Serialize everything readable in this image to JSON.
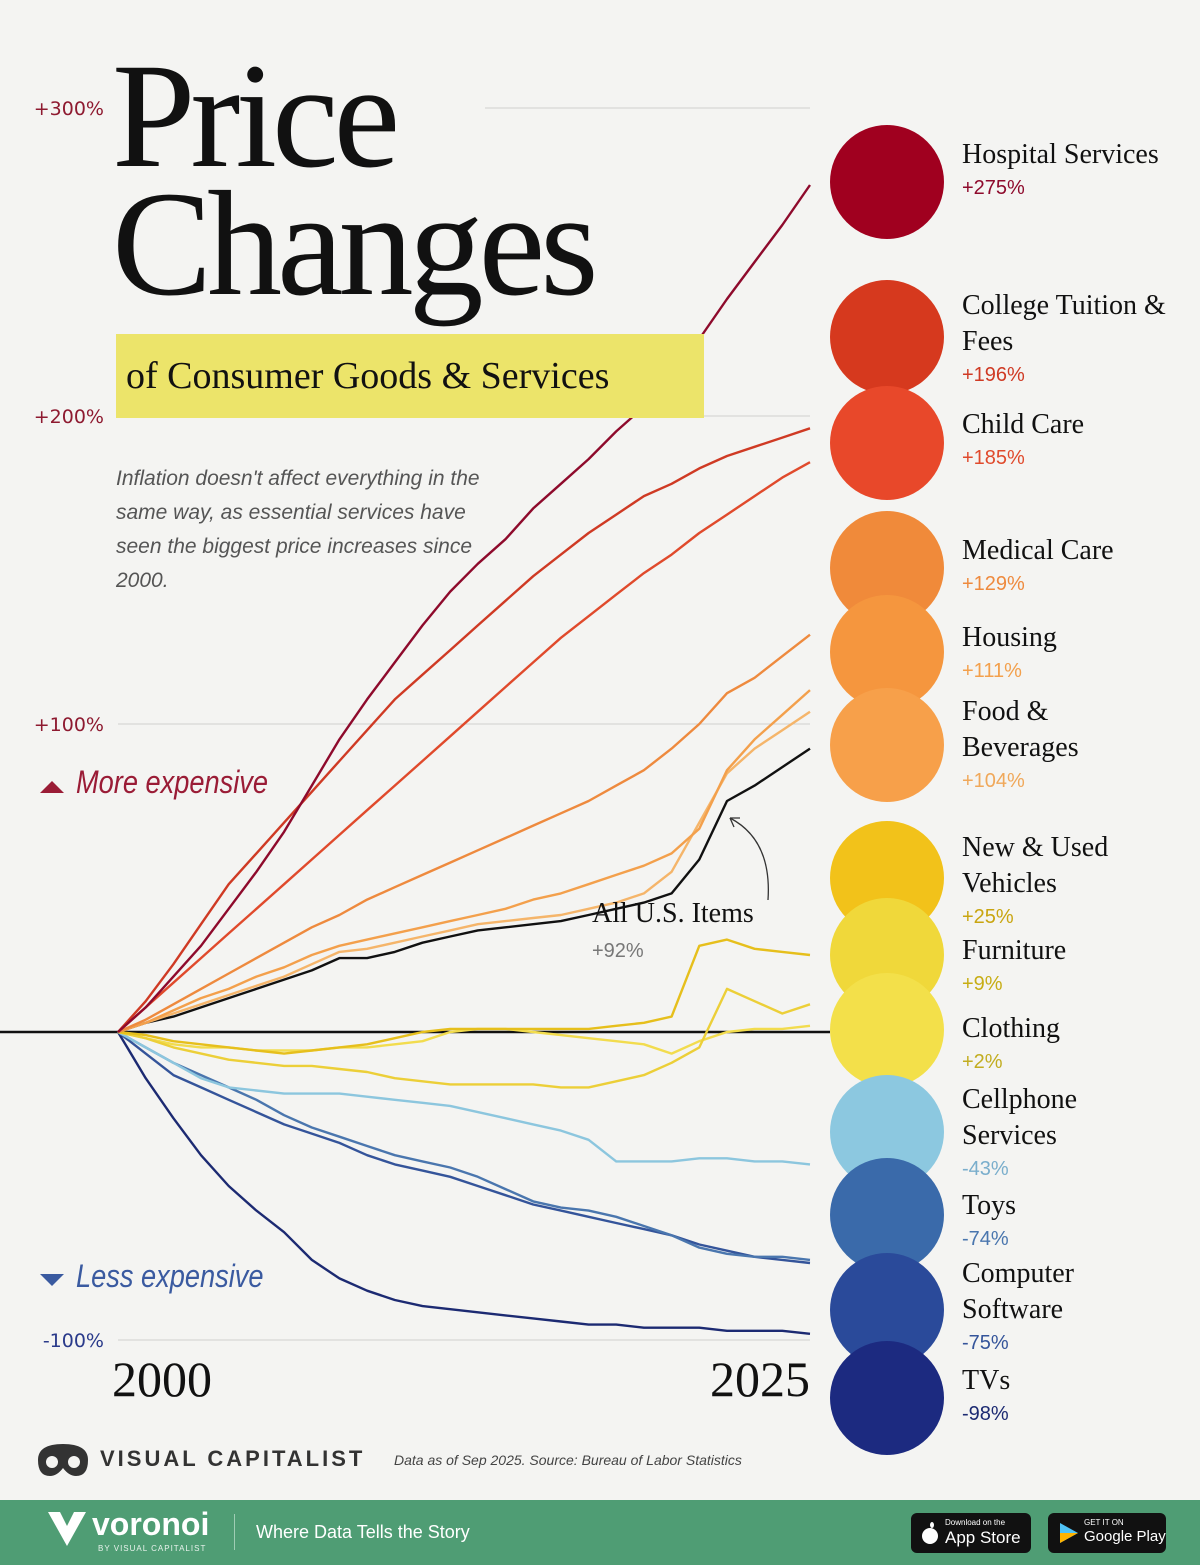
{
  "title": "Price Changes",
  "subtitle": "of Consumer Goods & Services",
  "description": "Inflation doesn't affect everything in the same way, as essential services have seen the biggest price increases since 2000.",
  "chart_data": {
    "type": "line",
    "annotations": [
      "More expensive",
      "Less expensive"
    ],
    "x": [
      2000,
      2001,
      2002,
      2003,
      2004,
      2005,
      2006,
      2007,
      2008,
      2009,
      2010,
      2011,
      2012,
      2013,
      2014,
      2015,
      2016,
      2017,
      2018,
      2019,
      2020,
      2021,
      2022,
      2023,
      2024,
      2025
    ],
    "xlim": [
      2000,
      2025
    ],
    "xticks": [
      2000,
      2025
    ],
    "ylim": [
      -100,
      300
    ],
    "yticks": [
      {
        "value": -100,
        "label": "-100%"
      },
      {
        "value": 100,
        "label": "+100%"
      },
      {
        "value": 200,
        "label": "+200%"
      },
      {
        "value": 300,
        "label": "+300%"
      }
    ],
    "grid": true,
    "series": [
      {
        "name": "Hospital Services",
        "color": "#8e0a2c",
        "values": [
          0,
          8,
          18,
          28,
          40,
          52,
          65,
          80,
          95,
          108,
          120,
          132,
          143,
          152,
          160,
          170,
          178,
          186,
          195,
          203,
          212,
          225,
          238,
          250,
          262,
          275
        ],
        "value_labels": [
          null,
          null,
          null,
          null,
          null,
          null,
          null,
          null,
          null,
          null,
          null,
          null,
          null,
          null,
          null,
          null,
          null,
          null,
          null,
          null,
          null,
          null,
          null,
          null,
          null,
          "+275%"
        ]
      },
      {
        "name": "College Tuition & Fees",
        "color": "#cf3a24",
        "values": [
          0,
          10,
          22,
          35,
          48,
          58,
          68,
          78,
          88,
          98,
          108,
          116,
          124,
          132,
          140,
          148,
          155,
          162,
          168,
          174,
          178,
          183,
          187,
          190,
          193,
          196
        ],
        "value_labels": [
          null,
          null,
          null,
          null,
          null,
          null,
          null,
          null,
          null,
          null,
          null,
          null,
          null,
          null,
          null,
          null,
          null,
          null,
          null,
          null,
          null,
          null,
          null,
          null,
          null,
          "+196%"
        ]
      },
      {
        "name": "Child Care",
        "color": "#e04a2c",
        "values": [
          0,
          8,
          16,
          24,
          32,
          40,
          48,
          56,
          64,
          72,
          80,
          88,
          96,
          104,
          112,
          120,
          128,
          135,
          142,
          149,
          155,
          162,
          168,
          174,
          180,
          185
        ],
        "value_labels": [
          null,
          null,
          null,
          null,
          null,
          null,
          null,
          null,
          null,
          null,
          null,
          null,
          null,
          null,
          null,
          null,
          null,
          null,
          null,
          null,
          null,
          null,
          null,
          null,
          null,
          "+185%"
        ]
      },
      {
        "name": "Medical Care",
        "color": "#ee8a3e",
        "values": [
          0,
          4,
          9,
          14,
          19,
          24,
          29,
          34,
          38,
          43,
          47,
          51,
          55,
          59,
          63,
          67,
          71,
          75,
          80,
          85,
          92,
          100,
          110,
          115,
          122,
          129
        ],
        "value_labels": [
          null,
          null,
          null,
          null,
          null,
          null,
          null,
          null,
          null,
          null,
          null,
          null,
          null,
          null,
          null,
          null,
          null,
          null,
          null,
          null,
          null,
          null,
          null,
          null,
          null,
          "+129%"
        ]
      },
      {
        "name": "Housing",
        "color": "#f3a04c",
        "values": [
          0,
          3,
          7,
          11,
          14,
          18,
          21,
          25,
          28,
          30,
          32,
          34,
          36,
          38,
          40,
          43,
          45,
          48,
          51,
          54,
          58,
          66,
          85,
          95,
          103,
          111
        ],
        "value_labels": [
          null,
          null,
          null,
          null,
          null,
          null,
          null,
          null,
          null,
          null,
          null,
          null,
          null,
          null,
          null,
          null,
          null,
          null,
          null,
          null,
          null,
          null,
          null,
          null,
          null,
          "+111%"
        ]
      },
      {
        "name": "Food & Beverages",
        "color": "#f5b56a",
        "values": [
          0,
          3,
          6,
          9,
          12,
          15,
          18,
          22,
          26,
          27,
          29,
          31,
          33,
          35,
          36,
          37,
          38,
          40,
          42,
          45,
          52,
          68,
          84,
          92,
          98,
          104
        ],
        "value_labels": [
          null,
          null,
          null,
          null,
          null,
          null,
          null,
          null,
          null,
          null,
          null,
          null,
          null,
          null,
          null,
          null,
          null,
          null,
          null,
          null,
          null,
          null,
          null,
          null,
          null,
          "+104%"
        ]
      },
      {
        "name": "All U.S. Items",
        "color": "#111111",
        "values": [
          0,
          3,
          5,
          8,
          11,
          14,
          17,
          20,
          24,
          24,
          26,
          29,
          31,
          33,
          34,
          35,
          36,
          38,
          40,
          42,
          45,
          56,
          75,
          80,
          86,
          92
        ],
        "value_labels": [
          null,
          null,
          null,
          null,
          null,
          null,
          null,
          null,
          null,
          null,
          null,
          null,
          null,
          null,
          null,
          null,
          null,
          null,
          null,
          null,
          null,
          null,
          null,
          null,
          null,
          "+92%"
        ]
      },
      {
        "name": "New & Used Vehicles",
        "color": "#e6bf1c",
        "values": [
          0,
          -1,
          -3,
          -4,
          -5,
          -6,
          -7,
          -6,
          -5,
          -4,
          -2,
          0,
          1,
          1,
          1,
          1,
          1,
          1,
          2,
          3,
          5,
          28,
          30,
          27,
          26,
          25
        ],
        "value_labels": [
          null,
          null,
          null,
          null,
          null,
          null,
          null,
          null,
          null,
          null,
          null,
          null,
          null,
          null,
          null,
          null,
          null,
          null,
          null,
          null,
          null,
          null,
          null,
          null,
          null,
          "+25%"
        ]
      },
      {
        "name": "Furniture",
        "color": "#eccf38",
        "values": [
          0,
          -2,
          -5,
          -7,
          -9,
          -10,
          -11,
          -11,
          -12,
          -13,
          -15,
          -16,
          -17,
          -17,
          -17,
          -17,
          -18,
          -18,
          -16,
          -14,
          -10,
          -5,
          14,
          10,
          6,
          9
        ],
        "value_labels": [
          null,
          null,
          null,
          null,
          null,
          null,
          null,
          null,
          null,
          null,
          null,
          null,
          null,
          null,
          null,
          null,
          null,
          null,
          null,
          null,
          null,
          null,
          null,
          null,
          null,
          "+9%"
        ]
      },
      {
        "name": "Clothing",
        "color": "#f2dc4e",
        "values": [
          0,
          -2,
          -4,
          -5,
          -5,
          -6,
          -6,
          -6,
          -5,
          -5,
          -4,
          -3,
          0,
          1,
          1,
          0,
          -1,
          -2,
          -3,
          -4,
          -7,
          -3,
          0,
          1,
          1,
          2
        ],
        "value_labels": [
          null,
          null,
          null,
          null,
          null,
          null,
          null,
          null,
          null,
          null,
          null,
          null,
          null,
          null,
          null,
          null,
          null,
          null,
          null,
          null,
          null,
          null,
          null,
          null,
          null,
          "+2%"
        ]
      },
      {
        "name": "Cellphone Services",
        "color": "#8cc6de",
        "values": [
          0,
          -5,
          -10,
          -15,
          -18,
          -19,
          -20,
          -20,
          -20,
          -21,
          -22,
          -23,
          -24,
          -26,
          -28,
          -30,
          -32,
          -35,
          -42,
          -42,
          -42,
          -41,
          -41,
          -42,
          -42,
          -43
        ],
        "value_labels": [
          null,
          null,
          null,
          null,
          null,
          null,
          null,
          null,
          null,
          null,
          null,
          null,
          null,
          null,
          null,
          null,
          null,
          null,
          null,
          null,
          null,
          null,
          null,
          null,
          null,
          "-43%"
        ]
      },
      {
        "name": "Toys",
        "color": "#4a76ae",
        "values": [
          0,
          -5,
          -10,
          -14,
          -18,
          -22,
          -27,
          -31,
          -34,
          -37,
          -40,
          -42,
          -44,
          -47,
          -51,
          -55,
          -57,
          -58,
          -60,
          -63,
          -66,
          -70,
          -72,
          -73,
          -73,
          -74
        ],
        "value_labels": [
          null,
          null,
          null,
          null,
          null,
          null,
          null,
          null,
          null,
          null,
          null,
          null,
          null,
          null,
          null,
          null,
          null,
          null,
          null,
          null,
          null,
          null,
          null,
          null,
          null,
          "-74%"
        ]
      },
      {
        "name": "Computer Software",
        "color": "#34549a",
        "values": [
          0,
          -7,
          -14,
          -18,
          -22,
          -26,
          -30,
          -33,
          -36,
          -40,
          -43,
          -45,
          -47,
          -50,
          -53,
          -56,
          -58,
          -60,
          -62,
          -64,
          -66,
          -69,
          -71,
          -73,
          -74,
          -75
        ],
        "value_labels": [
          null,
          null,
          null,
          null,
          null,
          null,
          null,
          null,
          null,
          null,
          null,
          null,
          null,
          null,
          null,
          null,
          null,
          null,
          null,
          null,
          null,
          null,
          null,
          null,
          null,
          "-75%"
        ]
      },
      {
        "name": "TVs",
        "color": "#1c2a72",
        "values": [
          0,
          -15,
          -28,
          -40,
          -50,
          -58,
          -65,
          -74,
          -80,
          -84,
          -87,
          -89,
          -90,
          -91,
          -92,
          -93,
          -94,
          -95,
          -95,
          -96,
          -96,
          -96,
          -97,
          -97,
          -97,
          -98
        ],
        "value_labels": [
          null,
          null,
          null,
          null,
          null,
          null,
          null,
          null,
          null,
          null,
          null,
          null,
          null,
          null,
          null,
          null,
          null,
          null,
          null,
          null,
          null,
          null,
          null,
          null,
          null,
          "-98%"
        ]
      }
    ]
  },
  "footer": {
    "brand": "VISUAL CAPITALIST",
    "source": "Data as of Sep 2025. Source: Bureau of Labor Statistics"
  },
  "banner": {
    "logo": "voronoi",
    "logo_sub": "BY VISUAL CAPITALIST",
    "tagline": "Where Data Tells the Story",
    "app_store": {
      "small": "Download on the",
      "big": "App Store"
    },
    "google_play": {
      "small": "GET IT ON",
      "big": "Google Play"
    }
  }
}
